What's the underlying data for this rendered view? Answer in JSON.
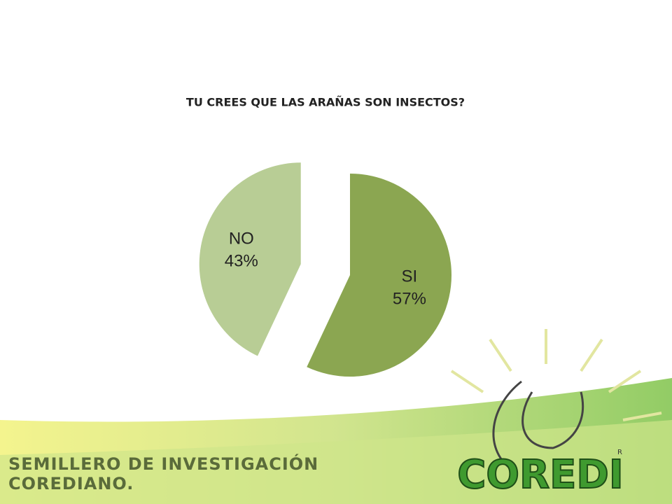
{
  "chart_data": {
    "type": "pie",
    "title": "TU CREES QUE LAS ARAÑAS SON INSECTOS?",
    "categories": [
      "SI",
      "NO"
    ],
    "values": [
      57,
      43
    ],
    "value_labels": [
      "57%",
      "43%"
    ],
    "colors": [
      "#8ba651",
      "#b8cd95"
    ]
  },
  "footer": {
    "line1": "SEMILLERO DE INVESTIGACIÓN",
    "line2": "COREDIANO.",
    "logo": "COREDI",
    "registered": "R"
  }
}
